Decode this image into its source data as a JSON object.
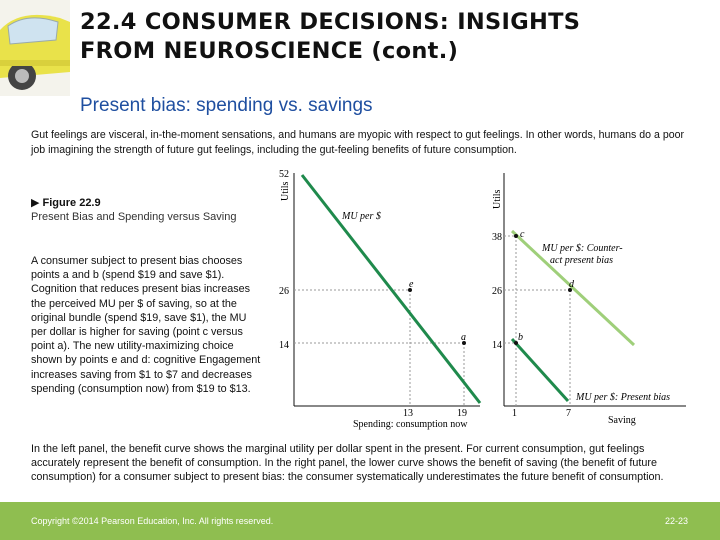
{
  "header": {
    "title_line1": "22.4 CONSUMER DECISIONS: INSIGHTS",
    "title_line2": "FROM NEUROSCIENCE (cont.)",
    "subtitle": "Present bias: spending vs. savings"
  },
  "intro": "Gut feelings are visceral, in-the-moment sensations, and humans are myopic with respect to gut feelings. In other words, humans do a poor job imagining the strength of future gut feelings, including the gut-feeling benefits of future consumption.",
  "figure": {
    "marker": "▶",
    "number": "Figure 22.9",
    "caption": "Present Bias and Spending versus Saving"
  },
  "body_text": "A consumer subject to present bias chooses points a and b (spend $19 and save $1). Cognition that reduces present bias increases the perceived MU per $ of saving, so at the original bundle (spend $19, save $1), the MU per dollar is higher for saving (point c versus point a). The new utility-maximizing choice shown by points e and d: cognitive Engagement increases saving from $1 to $7 and decreases spending (consumption now) from $19 to $13.",
  "bottom_text": "In the left panel, the benefit curve shows the marginal utility per dollar spent in the present. For current consumption, gut feelings accurately represent the benefit of consumption. In the right panel, the lower curve shows the benefit of saving (the benefit of future consumption) for a consumer subject to present bias: the consumer systematically underestimates the future benefit of consumption.",
  "footer": {
    "copyright": "Copyright ©2014 Pearson Education, Inc. All rights reserved.",
    "page": "22-23"
  },
  "chart_data": [
    {
      "type": "line",
      "ylabel": "Utils",
      "xlabel": "Spending: consumption now",
      "y_ticks": [
        "52",
        "26",
        "14"
      ],
      "x_ticks": [
        "13",
        "19"
      ],
      "series": [
        {
          "name": "MU per $",
          "points": [
            [
              0,
              52
            ],
            [
              19,
              14
            ]
          ]
        }
      ],
      "points": [
        {
          "label": "e",
          "x": 13,
          "y": 26
        },
        {
          "label": "a",
          "x": 19,
          "y": 14
        }
      ]
    },
    {
      "type": "line",
      "ylabel": "Utils",
      "xlabel": "Saving",
      "y_ticks": [
        "38",
        "26",
        "14"
      ],
      "x_ticks": [
        "1",
        "7"
      ],
      "series": [
        {
          "name": "MU per $: Counter-act present bias",
          "points": [
            [
              1,
              38
            ],
            [
              7,
              26
            ]
          ],
          "color": "#9fcf7a"
        },
        {
          "name": "MU per $: Present bias",
          "points": [
            [
              1,
              14
            ],
            [
              7,
              2
            ]
          ],
          "color": "#1f8a4c"
        }
      ],
      "points": [
        {
          "label": "c",
          "x": 1,
          "y": 38
        },
        {
          "label": "d",
          "x": 7,
          "y": 26
        },
        {
          "label": "b",
          "x": 1,
          "y": 14
        }
      ],
      "series_label_lines": {
        "counteract": [
          "MU per $: Counter-",
          "act present bias"
        ],
        "present_bias": "MU per $: Present bias"
      }
    }
  ]
}
